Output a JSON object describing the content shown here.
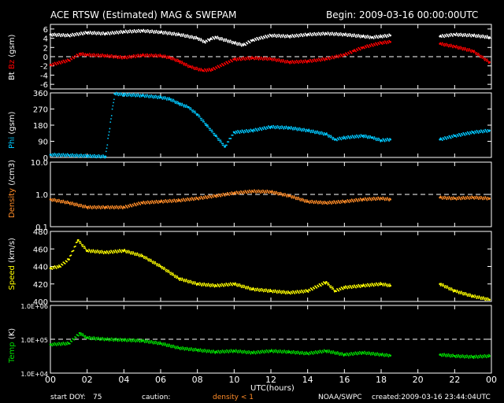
{
  "header": {
    "title": "ACE RTSW (Estimated) MAG & SWEPAM",
    "begin": "Begin: 2009-03-16 00:00:00UTC"
  },
  "footer": {
    "start_doy_label": "start DOY:",
    "start_doy": "75",
    "caution": "caution:",
    "density_note": "density < 1",
    "source": "NOAA/SWPC",
    "created": "created:2009-03-16 23:44:04UTC"
  },
  "colors": {
    "bt": "#ffffff",
    "bz": "#ff0000",
    "phi": "#00c8ff",
    "density": "#ff8c28",
    "speed": "#ffff00",
    "temp": "#00dd00"
  },
  "chart_data": {
    "type": "scatter",
    "x_axis": {
      "label": "UTC(hours)",
      "range": [
        0,
        24
      ],
      "ticks": [
        "00",
        "02",
        "04",
        "06",
        "08",
        "10",
        "12",
        "14",
        "16",
        "18",
        "20",
        "22",
        "00"
      ]
    },
    "panels": [
      {
        "id": "mag",
        "ylabel_parts": [
          {
            "text": "Bt",
            "color": "#ffffff"
          },
          {
            "text": "Bz",
            "color": "#ff0000"
          },
          {
            "text": "(gsm)",
            "color": "#ffffff"
          }
        ],
        "scale": "linear",
        "ylim": [
          -7,
          7
        ],
        "ticks": [
          6,
          4,
          2,
          0,
          -2,
          -4,
          -6
        ],
        "tick_labels": [
          "6",
          "4",
          "2",
          "0",
          "-2",
          "-4",
          "-6"
        ],
        "ref_lines": [
          0
        ],
        "series": [
          {
            "name": "Bt",
            "color": "#ffffff",
            "points": [
              [
                0,
                4.8
              ],
              [
                1,
                4.6
              ],
              [
                2,
                5.2
              ],
              [
                3,
                5.0
              ],
              [
                4,
                5.4
              ],
              [
                5,
                5.6
              ],
              [
                6,
                5.3
              ],
              [
                7,
                4.8
              ],
              [
                8,
                4.0
              ],
              [
                8.4,
                3.2
              ],
              [
                8.7,
                3.8
              ],
              [
                9,
                4.2
              ],
              [
                10,
                3.0
              ],
              [
                10.5,
                2.5
              ],
              [
                11,
                3.6
              ],
              [
                12,
                4.6
              ],
              [
                13,
                4.4
              ],
              [
                14,
                4.8
              ],
              [
                15,
                5.0
              ],
              [
                16,
                4.8
              ],
              [
                17,
                4.4
              ],
              [
                17.5,
                4.2
              ],
              [
                18,
                4.4
              ],
              [
                18.5,
                4.6
              ],
              [
                21.2,
                4.4
              ],
              [
                22,
                4.8
              ],
              [
                23,
                4.6
              ],
              [
                23.9,
                4.2
              ]
            ]
          },
          {
            "name": "Bz",
            "color": "#ff0000",
            "points": [
              [
                0,
                -1.8
              ],
              [
                1,
                -0.8
              ],
              [
                1.6,
                0.6
              ],
              [
                2,
                0.4
              ],
              [
                3,
                0.2
              ],
              [
                4,
                -0.2
              ],
              [
                5,
                0.3
              ],
              [
                6,
                0.2
              ],
              [
                6.5,
                -0.2
              ],
              [
                7,
                -1.0
              ],
              [
                7.6,
                -2.2
              ],
              [
                8.3,
                -3.0
              ],
              [
                8.8,
                -2.8
              ],
              [
                10,
                -0.6
              ],
              [
                11,
                -0.3
              ],
              [
                12,
                -0.5
              ],
              [
                13,
                -1.2
              ],
              [
                14,
                -1.0
              ],
              [
                15,
                -0.5
              ],
              [
                16,
                0.4
              ],
              [
                16.5,
                1.2
              ],
              [
                17,
                2.0
              ],
              [
                18,
                3.0
              ],
              [
                18.5,
                3.2
              ],
              [
                21.2,
                2.8
              ],
              [
                22,
                2.2
              ],
              [
                23,
                1.2
              ],
              [
                23.9,
                -1.2
              ]
            ]
          }
        ]
      },
      {
        "id": "phi",
        "ylabel_parts": [
          {
            "text": "Phi",
            "color": "#00c8ff"
          },
          {
            "text": "(gsm)",
            "color": "#ffffff"
          }
        ],
        "scale": "linear",
        "ylim": [
          0,
          360
        ],
        "ticks": [
          360,
          270,
          180,
          90,
          0
        ],
        "tick_labels": [
          "360",
          "270",
          "180",
          "90",
          "0"
        ],
        "ref_lines": [],
        "series": [
          {
            "name": "Phi",
            "color": "#00c8ff",
            "points": [
              [
                0,
                15
              ],
              [
                1,
                12
              ],
              [
                2,
                8
              ],
              [
                3,
                5
              ],
              [
                3.5,
                355
              ],
              [
                4,
                350
              ],
              [
                5,
                345
              ],
              [
                6,
                335
              ],
              [
                6.5,
                325
              ],
              [
                7,
                300
              ],
              [
                7.5,
                280
              ],
              [
                8,
                240
              ],
              [
                8.5,
                180
              ],
              [
                9,
                120
              ],
              [
                9.5,
                60
              ],
              [
                10,
                140
              ],
              [
                11,
                150
              ],
              [
                12,
                170
              ],
              [
                13,
                165
              ],
              [
                14,
                150
              ],
              [
                15,
                130
              ],
              [
                15.5,
                100
              ],
              [
                16,
                110
              ],
              [
                17,
                120
              ],
              [
                17.5,
                110
              ],
              [
                18,
                95
              ],
              [
                18.5,
                100
              ],
              [
                21.2,
                100
              ],
              [
                22,
                120
              ],
              [
                23,
                140
              ],
              [
                23.9,
                150
              ]
            ]
          }
        ]
      },
      {
        "id": "density",
        "ylabel_parts": [
          {
            "text": "Density",
            "color": "#ff8c28"
          },
          {
            "text": "(/cm3)",
            "color": "#ffffff"
          }
        ],
        "scale": "log",
        "ylim": [
          0.1,
          10
        ],
        "ticks": [
          10,
          1,
          0.1
        ],
        "tick_labels": [
          "10.0",
          "1.0",
          "0.1"
        ],
        "ref_lines": [
          1
        ],
        "series": [
          {
            "name": "Density",
            "color": "#ff8c28",
            "points": [
              [
                0,
                0.7
              ],
              [
                1,
                0.55
              ],
              [
                2,
                0.4
              ],
              [
                3,
                0.4
              ],
              [
                4,
                0.4
              ],
              [
                5,
                0.55
              ],
              [
                6,
                0.6
              ],
              [
                7,
                0.65
              ],
              [
                8,
                0.75
              ],
              [
                9,
                0.9
              ],
              [
                10,
                1.1
              ],
              [
                11,
                1.25
              ],
              [
                12,
                1.2
              ],
              [
                13,
                0.9
              ],
              [
                14,
                0.6
              ],
              [
                15,
                0.55
              ],
              [
                16,
                0.6
              ],
              [
                17,
                0.7
              ],
              [
                18,
                0.75
              ],
              [
                18.5,
                0.7
              ],
              [
                21.2,
                0.8
              ],
              [
                22,
                0.75
              ],
              [
                23,
                0.8
              ],
              [
                23.9,
                0.75
              ]
            ]
          }
        ]
      },
      {
        "id": "speed",
        "ylabel_parts": [
          {
            "text": "Speed",
            "color": "#ffff00"
          },
          {
            "text": "(km/s)",
            "color": "#ffffff"
          }
        ],
        "scale": "linear",
        "ylim": [
          400,
          480
        ],
        "ticks": [
          480,
          460,
          440,
          420,
          400
        ],
        "tick_labels": [
          "480",
          "460",
          "440",
          "420",
          "400"
        ],
        "ref_lines": [],
        "series": [
          {
            "name": "Speed",
            "color": "#ffff00",
            "points": [
              [
                0,
                438
              ],
              [
                0.5,
                440
              ],
              [
                1,
                448
              ],
              [
                1.5,
                470
              ],
              [
                2,
                458
              ],
              [
                3,
                456
              ],
              [
                4,
                458
              ],
              [
                5,
                452
              ],
              [
                6,
                440
              ],
              [
                7,
                426
              ],
              [
                8,
                420
              ],
              [
                9,
                418
              ],
              [
                10,
                420
              ],
              [
                11,
                414
              ],
              [
                12,
                412
              ],
              [
                13,
                410
              ],
              [
                14,
                412
              ],
              [
                15,
                422
              ],
              [
                15.5,
                412
              ],
              [
                16,
                416
              ],
              [
                17,
                418
              ],
              [
                18,
                420
              ],
              [
                18.5,
                418
              ],
              [
                21.2,
                420
              ],
              [
                22,
                412
              ],
              [
                23,
                406
              ],
              [
                23.9,
                402
              ]
            ]
          }
        ]
      },
      {
        "id": "temp",
        "ylabel_parts": [
          {
            "text": "Temp",
            "color": "#00dd00"
          },
          {
            "text": "(K)",
            "color": "#ffffff"
          }
        ],
        "scale": "log",
        "ylim": [
          10000,
          1000000
        ],
        "ticks": [
          1000000,
          100000,
          10000
        ],
        "tick_labels": [
          "1.0E+06",
          "1.0E+05",
          "1.0E+04"
        ],
        "ref_lines": [
          100000
        ],
        "series": [
          {
            "name": "Temp",
            "color": "#00dd00",
            "points": [
              [
                0,
                70000
              ],
              [
                1,
                75000
              ],
              [
                1.6,
                150000
              ],
              [
                2,
                110000
              ],
              [
                3,
                100000
              ],
              [
                4,
                95000
              ],
              [
                5,
                90000
              ],
              [
                6,
                75000
              ],
              [
                7,
                55000
              ],
              [
                8,
                48000
              ],
              [
                9,
                42000
              ],
              [
                10,
                45000
              ],
              [
                11,
                40000
              ],
              [
                12,
                45000
              ],
              [
                13,
                42000
              ],
              [
                14,
                38000
              ],
              [
                15,
                45000
              ],
              [
                16,
                35000
              ],
              [
                17,
                40000
              ],
              [
                18,
                35000
              ],
              [
                18.5,
                33000
              ],
              [
                21.2,
                35000
              ],
              [
                22,
                32000
              ],
              [
                23,
                30000
              ],
              [
                23.9,
                32000
              ]
            ]
          }
        ]
      }
    ]
  }
}
